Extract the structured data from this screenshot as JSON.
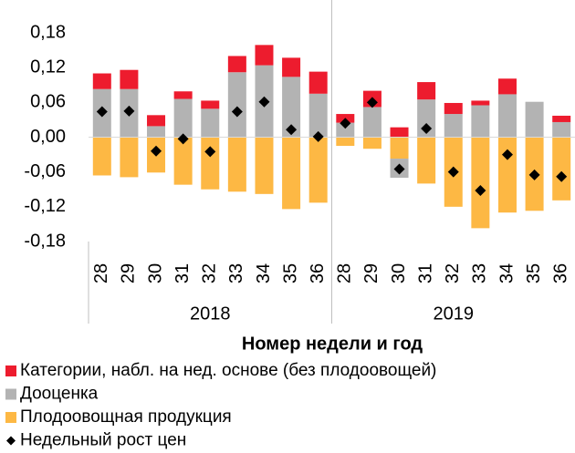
{
  "chart_data": {
    "type": "stacked_bar",
    "x_axis_label": "Номер недели и год",
    "categories": [
      "28",
      "29",
      "30",
      "31",
      "32",
      "33",
      "34",
      "35",
      "36",
      "28",
      "29",
      "30",
      "31",
      "32",
      "33",
      "34",
      "35",
      "36"
    ],
    "groups": [
      "2018",
      "2019"
    ],
    "series": [
      {
        "name": "Категории, набл. на нед. основе (без плодоовощей)",
        "color": "#ed1c2e",
        "values": [
          0.027,
          0.033,
          0.019,
          0.013,
          0.014,
          0.028,
          0.035,
          0.033,
          0.038,
          0.015,
          0.028,
          0.017,
          0.03,
          0.019,
          0.008,
          0.027,
          0,
          0.011
        ]
      },
      {
        "name": "Дооценка",
        "color": "#b3b3b3",
        "values": [
          0.083,
          0.083,
          0.019,
          0.066,
          0.049,
          0.112,
          0.124,
          0.104,
          0.075,
          0.025,
          0.052,
          -0.033,
          0.065,
          0.04,
          0.055,
          0.074,
          0.061,
          0.026
        ]
      },
      {
        "name": "Плодоовощная продукция",
        "color": "#fdb844",
        "values": [
          -0.066,
          -0.069,
          -0.061,
          -0.082,
          -0.09,
          -0.094,
          -0.098,
          -0.124,
          -0.113,
          -0.015,
          -0.02,
          -0.037,
          -0.08,
          -0.12,
          -0.157,
          -0.13,
          -0.127,
          -0.109
        ]
      },
      {
        "name": "Недельный рост цен",
        "color": "#000000",
        "type": "marker",
        "values": [
          0.044,
          0.045,
          -0.024,
          -0.003,
          -0.025,
          0.044,
          0.061,
          0.013,
          0.001,
          0.024,
          0.06,
          -0.055,
          0.015,
          -0.06,
          -0.092,
          -0.03,
          -0.065,
          -0.068
        ]
      }
    ],
    "ylim": [
      -0.18,
      0.18
    ],
    "yticks": [
      {
        "value": 0.18,
        "label": "0,18"
      },
      {
        "value": 0.12,
        "label": "0,12"
      },
      {
        "value": 0.06,
        "label": "0,06"
      },
      {
        "value": 0,
        "label": "0,00"
      },
      {
        "value": -0.06,
        "label": "-0,06"
      },
      {
        "value": -0.12,
        "label": "-0,12"
      },
      {
        "value": -0.18,
        "label": "-0,18"
      }
    ],
    "grid": false
  }
}
